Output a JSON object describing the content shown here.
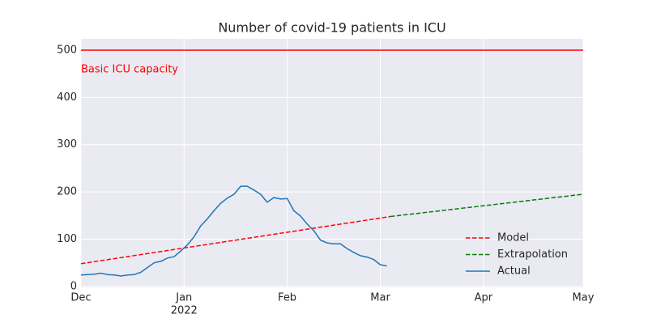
{
  "chart_data": {
    "type": "line",
    "title": "Number of covid-19 patients in ICU",
    "xlim": [
      0,
      151
    ],
    "xticks": [
      {
        "value": 0,
        "label": "Dec"
      },
      {
        "value": 31,
        "label": "Jan"
      },
      {
        "value": 62,
        "label": "Feb"
      },
      {
        "value": 90,
        "label": "Mar"
      },
      {
        "value": 121,
        "label": "Apr"
      },
      {
        "value": 151,
        "label": "May"
      }
    ],
    "year_ticks": [
      {
        "value": 31,
        "label": "2022"
      }
    ],
    "ylim": [
      -2,
      524
    ],
    "yticks": [
      0,
      100,
      200,
      300,
      400,
      500
    ],
    "grid": true,
    "legend": "lower right",
    "hlines": [
      {
        "value": 500,
        "label": "Basic ICU capacity",
        "color": "#ff0000"
      }
    ],
    "series": [
      {
        "name": "Model",
        "color": "#ff0000",
        "dash": true,
        "x": [
          0,
          93
        ],
        "values": [
          48,
          148
        ]
      },
      {
        "name": "Extrapolation",
        "color": "#008000",
        "dash": true,
        "x": [
          93,
          151
        ],
        "values": [
          148,
          195
        ]
      },
      {
        "name": "Actual",
        "color": "#1f77b4",
        "dash": false,
        "x": [
          0,
          2,
          4,
          6,
          8,
          10,
          12,
          14,
          16,
          18,
          20,
          22,
          24,
          26,
          28,
          30,
          32,
          34,
          36,
          38,
          40,
          42,
          44,
          46,
          48,
          50,
          52,
          54,
          56,
          58,
          60,
          62,
          64,
          66,
          68,
          70,
          72,
          74,
          76,
          78,
          80,
          82,
          84,
          86,
          88,
          90,
          92
        ],
        "values": [
          24,
          25,
          26,
          28,
          25,
          24,
          22,
          24,
          25,
          30,
          40,
          50,
          53,
          60,
          63,
          75,
          88,
          105,
          128,
          143,
          160,
          176,
          187,
          195,
          212,
          212,
          204,
          195,
          178,
          188,
          185,
          186,
          160,
          149,
          132,
          118,
          98,
          92,
          90,
          90,
          80,
          72,
          65,
          62,
          57,
          46,
          43
        ]
      }
    ]
  }
}
